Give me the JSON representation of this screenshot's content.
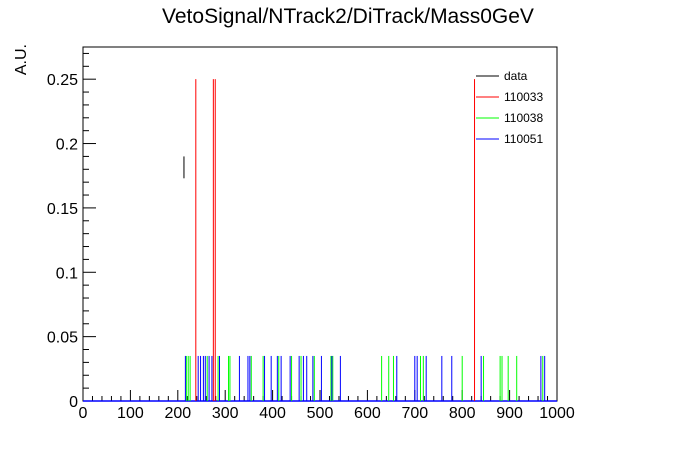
{
  "chart_data": {
    "type": "line",
    "title": "VetoSignal/NTrack2/DiTrack/Mass0GeV",
    "xlabel": "",
    "ylabel": "A.U.",
    "xlim": [
      0,
      1000
    ],
    "ylim": [
      0,
      0.275
    ],
    "x_ticks": [
      "0",
      "100",
      "200",
      "300",
      "400",
      "500",
      "600",
      "700",
      "800",
      "900",
      "1000"
    ],
    "y_ticks": [
      "0",
      "0.05",
      "0.1",
      "0.15",
      "0.2",
      "0.25"
    ],
    "x_tick_values": [
      0,
      100,
      200,
      300,
      400,
      500,
      600,
      700,
      800,
      900,
      1000
    ],
    "y_tick_values": [
      0,
      0.05,
      0.1,
      0.15,
      0.2,
      0.25
    ],
    "legend_position": "top-right",
    "series": [
      {
        "name": "data",
        "color": "#000000",
        "style": "error-bar",
        "points": [
          {
            "x": 213,
            "ylow": 0.173,
            "yhigh": 0.19
          }
        ]
      },
      {
        "name": "110033",
        "color": "#ff0000",
        "style": "spikes",
        "points": [
          {
            "x": 238,
            "y": 0.25
          },
          {
            "x": 275,
            "y": 0.25
          },
          {
            "x": 279,
            "y": 0.25
          },
          {
            "x": 826,
            "y": 0.25
          }
        ]
      },
      {
        "name": "110038",
        "color": "#00ff00",
        "style": "spikes",
        "points": [
          {
            "x": 218,
            "y": 0.035
          },
          {
            "x": 222,
            "y": 0.035
          },
          {
            "x": 226,
            "y": 0.035
          },
          {
            "x": 262,
            "y": 0.035
          },
          {
            "x": 285,
            "y": 0.035
          },
          {
            "x": 307,
            "y": 0.035
          },
          {
            "x": 310,
            "y": 0.035
          },
          {
            "x": 355,
            "y": 0.035
          },
          {
            "x": 380,
            "y": 0.035
          },
          {
            "x": 413,
            "y": 0.035
          },
          {
            "x": 440,
            "y": 0.035
          },
          {
            "x": 460,
            "y": 0.035
          },
          {
            "x": 488,
            "y": 0.035
          },
          {
            "x": 523,
            "y": 0.035
          },
          {
            "x": 527,
            "y": 0.035
          },
          {
            "x": 630,
            "y": 0.035
          },
          {
            "x": 645,
            "y": 0.035
          },
          {
            "x": 655,
            "y": 0.035
          },
          {
            "x": 712,
            "y": 0.035
          },
          {
            "x": 718,
            "y": 0.035
          },
          {
            "x": 800,
            "y": 0.035
          },
          {
            "x": 845,
            "y": 0.035
          },
          {
            "x": 880,
            "y": 0.035
          },
          {
            "x": 884,
            "y": 0.035
          },
          {
            "x": 897,
            "y": 0.035
          },
          {
            "x": 915,
            "y": 0.035
          },
          {
            "x": 970,
            "y": 0.035
          }
        ]
      },
      {
        "name": "110051",
        "color": "#0000ff",
        "style": "spikes",
        "points": [
          {
            "x": 216,
            "y": 0.035
          },
          {
            "x": 243,
            "y": 0.035
          },
          {
            "x": 248,
            "y": 0.035
          },
          {
            "x": 254,
            "y": 0.035
          },
          {
            "x": 258,
            "y": 0.035
          },
          {
            "x": 266,
            "y": 0.035
          },
          {
            "x": 272,
            "y": 0.035
          },
          {
            "x": 288,
            "y": 0.035
          },
          {
            "x": 330,
            "y": 0.035
          },
          {
            "x": 348,
            "y": 0.035
          },
          {
            "x": 352,
            "y": 0.035
          },
          {
            "x": 383,
            "y": 0.035
          },
          {
            "x": 397,
            "y": 0.035
          },
          {
            "x": 410,
            "y": 0.035
          },
          {
            "x": 418,
            "y": 0.035
          },
          {
            "x": 437,
            "y": 0.035
          },
          {
            "x": 456,
            "y": 0.035
          },
          {
            "x": 465,
            "y": 0.035
          },
          {
            "x": 472,
            "y": 0.035
          },
          {
            "x": 485,
            "y": 0.035
          },
          {
            "x": 503,
            "y": 0.035
          },
          {
            "x": 525,
            "y": 0.035
          },
          {
            "x": 543,
            "y": 0.035
          },
          {
            "x": 662,
            "y": 0.035
          },
          {
            "x": 700,
            "y": 0.035
          },
          {
            "x": 705,
            "y": 0.035
          },
          {
            "x": 724,
            "y": 0.035
          },
          {
            "x": 757,
            "y": 0.035
          },
          {
            "x": 778,
            "y": 0.035
          },
          {
            "x": 840,
            "y": 0.035
          },
          {
            "x": 966,
            "y": 0.035
          },
          {
            "x": 974,
            "y": 0.035
          }
        ]
      }
    ],
    "baseline_color": "#0000ff"
  }
}
